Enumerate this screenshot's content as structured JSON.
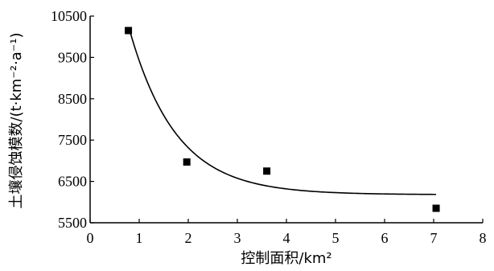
{
  "chart_data": {
    "type": "scatter",
    "title": "",
    "xlabel": "控制面积/km²",
    "ylabel": "土壤侵蚀模数/(t·km⁻²·a⁻¹)",
    "xlim": [
      0,
      8
    ],
    "ylim": [
      5500,
      10500
    ],
    "x_ticks": [
      "0",
      "1",
      "2",
      "3",
      "4",
      "5",
      "6",
      "7",
      "8"
    ],
    "y_ticks": [
      "5500",
      "6500",
      "7500",
      "8500",
      "9500",
      "10500"
    ],
    "grid": false,
    "legend": "none",
    "marker": "square",
    "series": [
      {
        "points": [
          {
            "x": 0.78,
            "y": 10150
          },
          {
            "x": 1.97,
            "y": 6970
          },
          {
            "x": 3.6,
            "y": 6750
          },
          {
            "x": 7.05,
            "y": 5850
          }
        ]
      }
    ],
    "fit_curve": {
      "type": "exponential-decay",
      "y_asymptote": 6180,
      "amplitude": 4000,
      "anchor_x": 0.8,
      "rate": 1.05,
      "x_range": [
        0.8,
        7.05
      ]
    }
  }
}
